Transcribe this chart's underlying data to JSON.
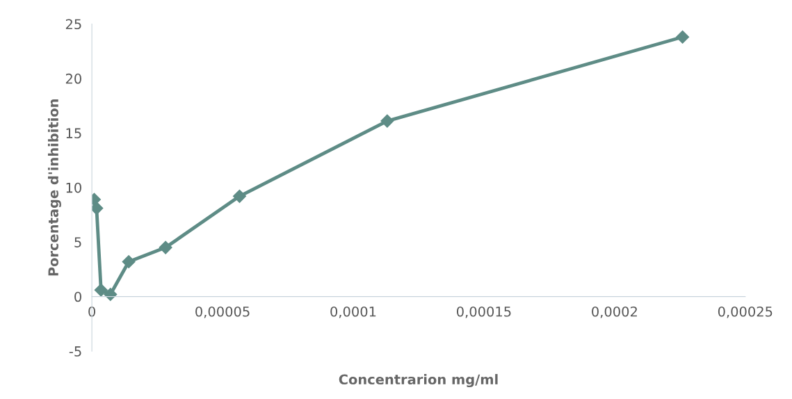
{
  "chart_data": {
    "type": "line",
    "xlabel": "Concentrarion mg/ml",
    "ylabel": "Porcentage d'inhibition",
    "x": [
      9e-07,
      1.8e-06,
      3.5e-06,
      7.1e-06,
      1.41e-05,
      2.82e-05,
      5.65e-05,
      0.000113,
      0.000226
    ],
    "series": [
      {
        "color": "#5e8c86",
        "values": [
          8.9,
          8.1,
          0.6,
          0.2,
          3.2,
          4.5,
          9.2,
          16.1,
          23.8
        ]
      }
    ],
    "marker": "diamond",
    "line_style": "solid",
    "grid": false,
    "legend": false,
    "xlim": [
      0,
      0.00025
    ],
    "ylim": [
      -5,
      25
    ],
    "xticks": [
      0,
      {
        "value": 5e-05,
        "label": "0,00005"
      },
      {
        "value": 0.0001,
        "label": "0,0001"
      },
      {
        "value": 0.00015,
        "label": "0,00015"
      },
      {
        "value": 0.0002,
        "label": "0,0002"
      },
      {
        "value": 0.00025,
        "label": "0,00025"
      }
    ],
    "yticks": [
      -5,
      0,
      5,
      10,
      15,
      20,
      25
    ]
  }
}
